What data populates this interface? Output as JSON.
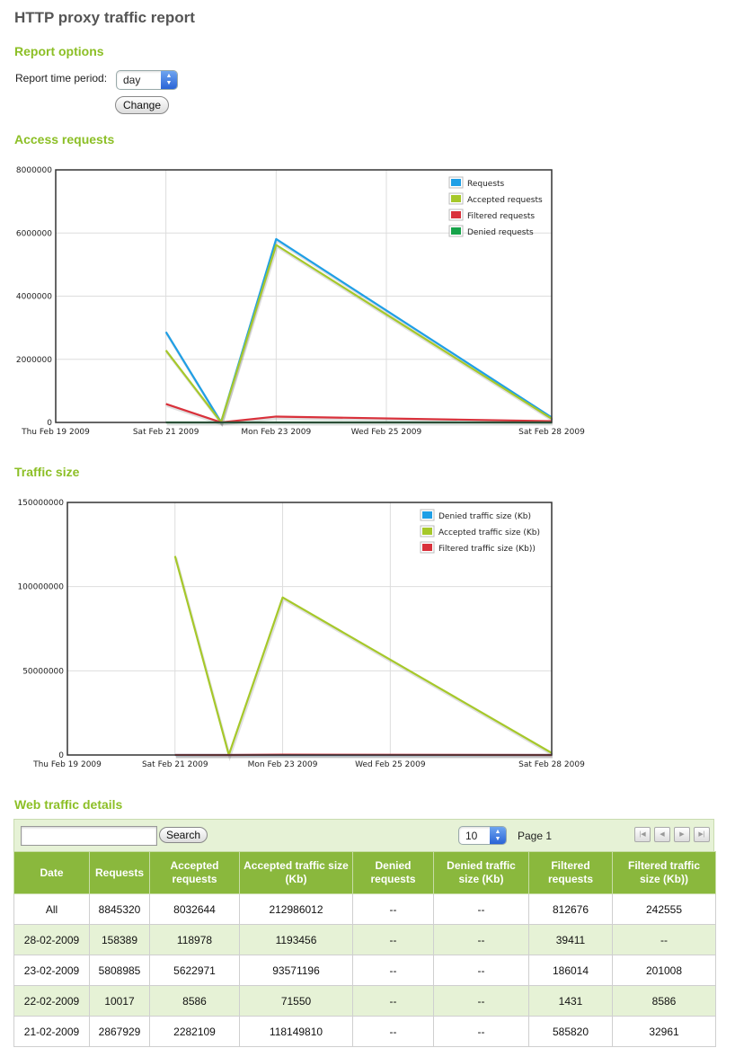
{
  "page": {
    "title": "HTTP proxy traffic report"
  },
  "report_options": {
    "title": "Report options",
    "period_label": "Report time period:",
    "period_value": "day",
    "change_label": "Change"
  },
  "access_section": {
    "title": "Access requests"
  },
  "traffic_section": {
    "title": "Traffic size"
  },
  "details_section": {
    "title": "Web traffic details"
  },
  "chart_data": [
    {
      "type": "line",
      "title": "Access requests",
      "x_ticks": [
        "Thu Feb 19 2009",
        "Sat Feb 21 2009",
        "Mon Feb 23 2009",
        "Wed Feb 25 2009",
        "Sat Feb 28 2009"
      ],
      "x_tick_days": [
        19,
        21,
        23,
        25,
        28
      ],
      "xlim": [
        19,
        28
      ],
      "y_ticks": [
        "0",
        "2000000",
        "4000000",
        "6000000",
        "8000000"
      ],
      "ylim": [
        0,
        8000000
      ],
      "grid": true,
      "legend_position": "top-right",
      "series": [
        {
          "name": "Requests",
          "color": "#1f9fe6",
          "days": [
            21,
            22,
            23,
            28
          ],
          "values": [
            2867929,
            10017,
            5808985,
            158389
          ]
        },
        {
          "name": "Accepted requests",
          "color": "#a6c82a",
          "days": [
            21,
            22,
            23,
            28
          ],
          "values": [
            2282109,
            8586,
            5622971,
            118978
          ]
        },
        {
          "name": "Filtered requests",
          "color": "#d9313b",
          "days": [
            21,
            22,
            23,
            28
          ],
          "values": [
            585820,
            1431,
            186014,
            39411
          ]
        },
        {
          "name": "Denied requests",
          "color": "#17a34a",
          "days": [
            21,
            22,
            23,
            28
          ],
          "values": [
            0,
            0,
            0,
            0
          ]
        }
      ]
    },
    {
      "type": "line",
      "title": "Traffic size",
      "x_ticks": [
        "Thu Feb 19 2009",
        "Sat Feb 21 2009",
        "Mon Feb 23 2009",
        "Wed Feb 25 2009",
        "Sat Feb 28 2009"
      ],
      "x_tick_days": [
        19,
        21,
        23,
        25,
        28
      ],
      "xlim": [
        19,
        28
      ],
      "y_ticks": [
        "0",
        "50000000",
        "100000000",
        "150000000"
      ],
      "ylim": [
        0,
        150000000
      ],
      "grid": true,
      "legend_position": "top-right",
      "series": [
        {
          "name": "Denied traffic size (Kb)",
          "color": "#1f9fe6",
          "days": [
            21,
            22,
            23,
            28
          ],
          "values": [
            0,
            0,
            0,
            0
          ]
        },
        {
          "name": "Accepted traffic size (Kb)",
          "color": "#a6c82a",
          "days": [
            21,
            22,
            23,
            28
          ],
          "values": [
            118149810,
            71550,
            93571196,
            1193456
          ]
        },
        {
          "name": "Filtered traffic size (Kb))",
          "color": "#d9313b",
          "days": [
            21,
            22,
            23,
            28
          ],
          "values": [
            32961,
            8586,
            201008,
            0
          ]
        }
      ]
    }
  ],
  "table": {
    "search_label": "Search",
    "search_value": "",
    "page_size": "10",
    "page_label": "Page 1",
    "pager_icons": [
      "first-page-icon",
      "prev-page-icon",
      "next-page-icon",
      "last-page-icon"
    ],
    "columns": [
      "Date",
      "Requests",
      "Accepted requests",
      "Accepted traffic size (Kb)",
      "Denied requests",
      "Denied traffic size (Kb)",
      "Filtered requests",
      "Filtered traffic size (Kb))"
    ],
    "rows": [
      [
        "All",
        "8845320",
        "8032644",
        "212986012",
        "--",
        "--",
        "812676",
        "242555"
      ],
      [
        "28-02-2009",
        "158389",
        "118978",
        "1193456",
        "--",
        "--",
        "39411",
        "--"
      ],
      [
        "23-02-2009",
        "5808985",
        "5622971",
        "93571196",
        "--",
        "--",
        "186014",
        "201008"
      ],
      [
        "22-02-2009",
        "10017",
        "8586",
        "71550",
        "--",
        "--",
        "1431",
        "8586"
      ],
      [
        "21-02-2009",
        "2867929",
        "2282109",
        "118149810",
        "--",
        "--",
        "585820",
        "32961"
      ]
    ]
  }
}
